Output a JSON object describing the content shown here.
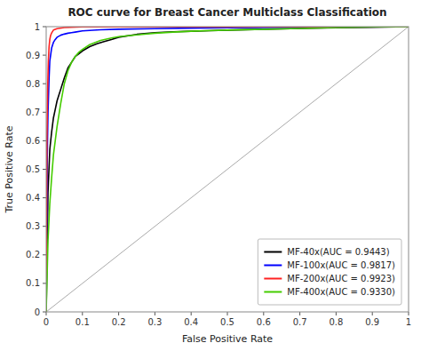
{
  "chart_data": {
    "type": "line",
    "title": "ROC curve for Breast Cancer Multiclass Classification",
    "xlabel": "False Positive Rate",
    "ylabel": "True Positive Rate",
    "xlim": [
      0,
      1
    ],
    "ylim": [
      0,
      1
    ],
    "xticks": [
      0,
      0.1,
      0.2,
      0.3,
      0.4,
      0.5,
      0.6,
      0.7,
      0.8,
      0.9,
      1
    ],
    "yticks": [
      0,
      0.1,
      0.2,
      0.3,
      0.4,
      0.5,
      0.6,
      0.7,
      0.8,
      0.9,
      1
    ],
    "grid": false,
    "legend": "lower right",
    "series": [
      {
        "color": "#aaaaaa",
        "x": [
          0,
          1
        ],
        "values": [
          0,
          1
        ]
      },
      {
        "name": "MF-40x(AUC = 0.9443)",
        "color": "#000000",
        "x": [
          0,
          0.005,
          0.01,
          0.015,
          0.02,
          0.025,
          0.03,
          0.035,
          0.04,
          0.05,
          0.06,
          0.07,
          0.08,
          0.09,
          0.1,
          0.12,
          0.14,
          0.16,
          0.18,
          0.2,
          0.25,
          0.3,
          0.35,
          0.4,
          0.45,
          0.5,
          0.6,
          0.7,
          0.8,
          0.9,
          1.0
        ],
        "values": [
          0,
          0.42,
          0.57,
          0.63,
          0.68,
          0.71,
          0.74,
          0.76,
          0.78,
          0.82,
          0.855,
          0.875,
          0.895,
          0.905,
          0.915,
          0.93,
          0.94,
          0.948,
          0.955,
          0.963,
          0.973,
          0.979,
          0.982,
          0.984,
          0.986,
          0.988,
          0.991,
          0.994,
          0.996,
          0.998,
          1.0
        ]
      },
      {
        "name": "MF-100x(AUC = 0.9817)",
        "color": "#0000ff",
        "x": [
          0,
          0.003,
          0.005,
          0.008,
          0.01,
          0.015,
          0.02,
          0.025,
          0.03,
          0.04,
          0.05,
          0.06,
          0.07,
          0.08,
          0.1,
          0.15,
          0.2,
          0.3,
          0.4,
          0.5,
          0.6,
          0.7,
          0.8,
          0.9,
          1.0
        ],
        "values": [
          0,
          0.55,
          0.7,
          0.82,
          0.88,
          0.925,
          0.945,
          0.955,
          0.963,
          0.97,
          0.974,
          0.977,
          0.979,
          0.981,
          0.985,
          0.989,
          0.991,
          0.993,
          0.995,
          0.996,
          0.997,
          0.998,
          0.999,
          1.0,
          1.0
        ]
      },
      {
        "name": "MF-200x(AUC = 0.9923)",
        "color": "#ff2222",
        "x": [
          0,
          0.002,
          0.004,
          0.006,
          0.008,
          0.01,
          0.012,
          0.015,
          0.02,
          0.03,
          0.05,
          0.1,
          0.2,
          0.3,
          0.4,
          0.5,
          0.6,
          0.7,
          0.8,
          0.9,
          1.0
        ],
        "values": [
          0,
          0.6,
          0.78,
          0.88,
          0.93,
          0.955,
          0.968,
          0.978,
          0.988,
          0.993,
          0.997,
          0.999,
          0.9993,
          0.9995,
          0.9996,
          0.9997,
          0.9998,
          0.9999,
          1.0,
          1.0,
          1.0
        ]
      },
      {
        "name": "MF-400x(AUC = 0.9330)",
        "color": "#44cc00",
        "x": [
          0,
          0.005,
          0.01,
          0.015,
          0.02,
          0.025,
          0.03,
          0.035,
          0.04,
          0.05,
          0.06,
          0.07,
          0.08,
          0.09,
          0.1,
          0.12,
          0.15,
          0.18,
          0.2,
          0.25,
          0.3,
          0.35,
          0.4,
          0.45,
          0.5,
          0.6,
          0.7,
          0.8,
          0.9,
          1.0
        ],
        "values": [
          0,
          0.25,
          0.38,
          0.47,
          0.55,
          0.6,
          0.65,
          0.69,
          0.73,
          0.8,
          0.845,
          0.875,
          0.895,
          0.91,
          0.92,
          0.937,
          0.952,
          0.96,
          0.965,
          0.971,
          0.977,
          0.981,
          0.984,
          0.986,
          0.988,
          0.991,
          0.994,
          0.997,
          0.999,
          1.0
        ]
      }
    ]
  }
}
